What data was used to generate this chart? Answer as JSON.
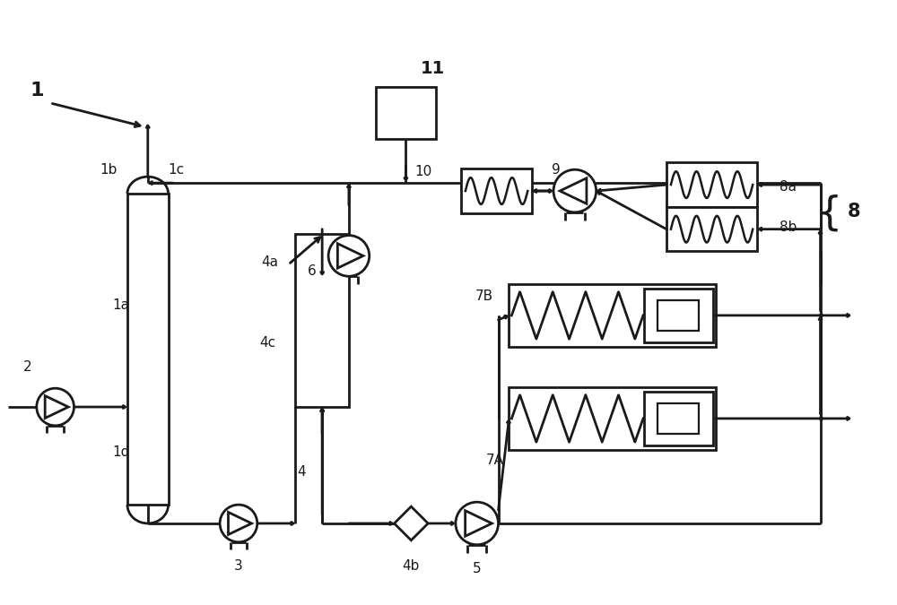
{
  "bg_color": "#ffffff",
  "lc": "#1a1a1a",
  "lw": 2.0,
  "fig_w": 10.0,
  "fig_h": 6.75,
  "xlim": [
    0,
    10
  ],
  "ylim": [
    0,
    6.75
  ]
}
